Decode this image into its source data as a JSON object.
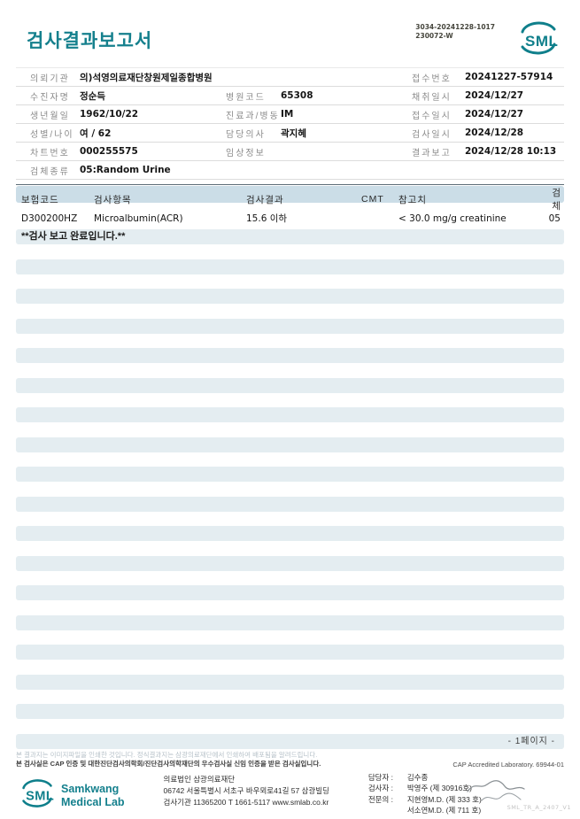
{
  "header": {
    "title": "검사결과보고서",
    "barcode_line1": "3034-20241228-1017",
    "barcode_line2": "230072-W",
    "logo_text": "SML"
  },
  "info": {
    "referrer_label": "의뢰기관",
    "referrer": "의)석영의료재단창원제일종합병원",
    "receipt_no_label": "접수번호",
    "receipt_no": "20241227-57914",
    "patient_label": "수진자명",
    "patient": "정순득",
    "hospital_code_label": "병원코드",
    "hospital_code": "65308",
    "collect_label": "채취일시",
    "collect": "2024/12/27",
    "birth_label": "생년월일",
    "birth": "1962/10/22",
    "dept_label": "진료과/병동",
    "dept": "IM",
    "receipt_date_label": "접수일시",
    "receipt_date": "2024/12/27",
    "sex_age_label": "성별/나이",
    "sex_age": "여 / 62",
    "doctor_label": "담당의사",
    "doctor": "곽지혜",
    "test_date_label": "검사일시",
    "test_date": "2024/12/28",
    "chart_label": "차트번호",
    "chart": "000255575",
    "clinical_label": "임상정보",
    "clinical": "",
    "report_label": "결과보고",
    "report": "2024/12/28 10:13",
    "specimen_label": "검체종류",
    "specimen": "05:Random Urine"
  },
  "results": {
    "col_code": "보험코드",
    "col_item": "검사항목",
    "col_result": "검사결과",
    "col_cmt": "CMT",
    "col_reference": "참고치",
    "col_specimen": "검체",
    "rows": [
      {
        "code": "D300200HZ",
        "item": "Microalbumin(ACR)",
        "result": "15.6 이하",
        "cmt": "",
        "reference": "< 30.0 mg/g creatinine",
        "specimen": "05"
      }
    ],
    "completion_note": "**검사 보고 완료입니다.**",
    "page_label": "- 1페이지 -"
  },
  "notices": {
    "line1": "본 결과지는 이미지파일을 인쇄한 것입니다. 정식결과지는 삼광의료재단에서 인쇄하여 배포됨을 알려드립니다.",
    "line2": "본 검사실은 CAP 인증 및 대한진단검사의학회/진단검사의학재단의 우수검사실 신임 인증을 받은 검사실입니다.",
    "cap": "CAP Accredited Laboratory. 69944-01"
  },
  "footer": {
    "logo_text": "SML",
    "brand_line1": "Samkwang",
    "brand_line2": "Medical Lab",
    "org_line1": "의료법인 삼광의료재단",
    "org_line2": "06742 서울특별시 서초구 바우뫼로41길 57 삼광빌딩",
    "org_line3": "검사기관 11365200 T 1661-5117 www.smlab.co.kr",
    "staff_manager_label": "담당자 :",
    "staff_manager": "김수종",
    "staff_tester_label": "검사자 :",
    "staff_tester": "박영주 (제 30916호)",
    "staff_specialist_label": "전문의 :",
    "staff_specialist1": "지현영M.D. (제 333 호)",
    "staff_specialist2": "서소연M.D. (제 711 호)",
    "doc_code": "SML_TR_A_2407_V1"
  },
  "colors": {
    "brand_teal": "#15808d",
    "stripe": "#e4edf1",
    "table_header_bg": "#cbdde7"
  }
}
